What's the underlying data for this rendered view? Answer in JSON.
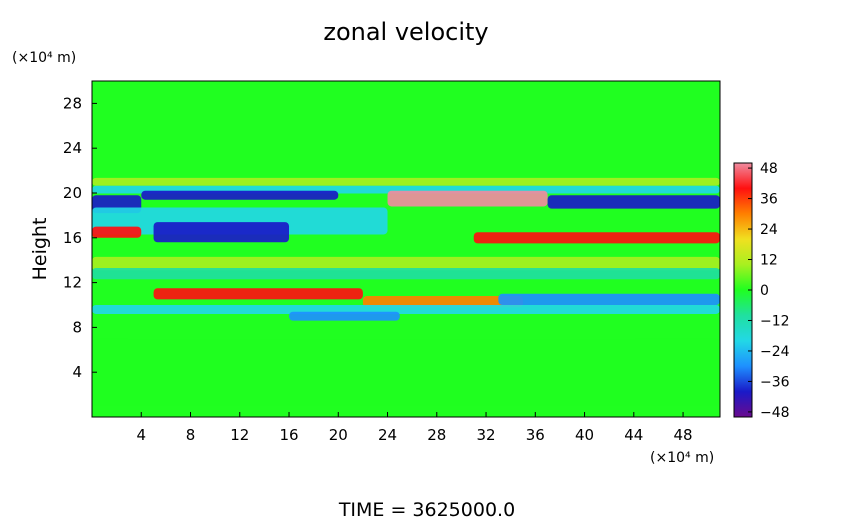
{
  "chart_data": {
    "type": "heatmap",
    "title": "zonal velocity",
    "xlabel": "",
    "ylabel": "Height",
    "x_unit": "(×10⁴ m)",
    "y_unit": "(×10⁴ m)",
    "footer": "TIME = 3625000.0",
    "xlim": [
      0,
      51
    ],
    "ylim": [
      0,
      30
    ],
    "x_ticks": [
      4,
      8,
      12,
      16,
      20,
      24,
      28,
      32,
      36,
      40,
      44,
      48
    ],
    "y_ticks": [
      4,
      8,
      12,
      16,
      20,
      24,
      28
    ],
    "colorbar": {
      "range": [
        -50,
        50
      ],
      "ticks": [
        48,
        36,
        24,
        12,
        0,
        -12,
        -24,
        -36,
        -48
      ],
      "colors": [
        "#6a0a8e",
        "#1a1ac8",
        "#1e90ff",
        "#22d8e6",
        "#20e0a0",
        "#20ff20",
        "#a8f020",
        "#f0e020",
        "#ff8000",
        "#ff1010",
        "#f08ca0"
      ]
    },
    "bands": [
      {
        "y": 21.0,
        "sy": 0.35,
        "x": [
          0,
          51
        ],
        "value": 14
      },
      {
        "y": 20.3,
        "sy": 0.35,
        "x": [
          0,
          51
        ],
        "value": -20
      },
      {
        "y": 19.5,
        "sy": 0.7,
        "x": [
          24,
          37
        ],
        "value": 48
      },
      {
        "y": 19.2,
        "sy": 0.6,
        "x": [
          37,
          51
        ],
        "value": -40
      },
      {
        "y": 19.0,
        "sy": 0.8,
        "x": [
          0,
          4
        ],
        "value": -44
      },
      {
        "y": 19.8,
        "sy": 0.4,
        "x": [
          4,
          20
        ],
        "value": -38
      },
      {
        "y": 17.5,
        "sy": 1.2,
        "x": [
          0,
          24
        ],
        "value": -22
      },
      {
        "y": 16.5,
        "sy": 0.9,
        "x": [
          5,
          16
        ],
        "value": -42
      },
      {
        "y": 16.0,
        "sy": 0.5,
        "x": [
          31,
          51
        ],
        "value": 40
      },
      {
        "y": 16.5,
        "sy": 0.5,
        "x": [
          0,
          4
        ],
        "value": 36
      },
      {
        "y": 13.7,
        "sy": 0.6,
        "x": [
          0,
          51
        ],
        "value": 14
      },
      {
        "y": 12.8,
        "sy": 0.5,
        "x": [
          0,
          51
        ],
        "value": -10
      },
      {
        "y": 11.0,
        "sy": 0.5,
        "x": [
          5,
          22
        ],
        "value": 44
      },
      {
        "y": 10.3,
        "sy": 0.5,
        "x": [
          22,
          35
        ],
        "value": 32
      },
      {
        "y": 10.5,
        "sy": 0.5,
        "x": [
          33,
          51
        ],
        "value": -30
      },
      {
        "y": 9.6,
        "sy": 0.4,
        "x": [
          0,
          51
        ],
        "value": -16
      },
      {
        "y": 9.0,
        "sy": 0.4,
        "x": [
          16,
          25
        ],
        "value": -26
      },
      {
        "y": 4.0,
        "sy": 3.0,
        "x": [
          0,
          51
        ],
        "value": 4
      }
    ]
  }
}
